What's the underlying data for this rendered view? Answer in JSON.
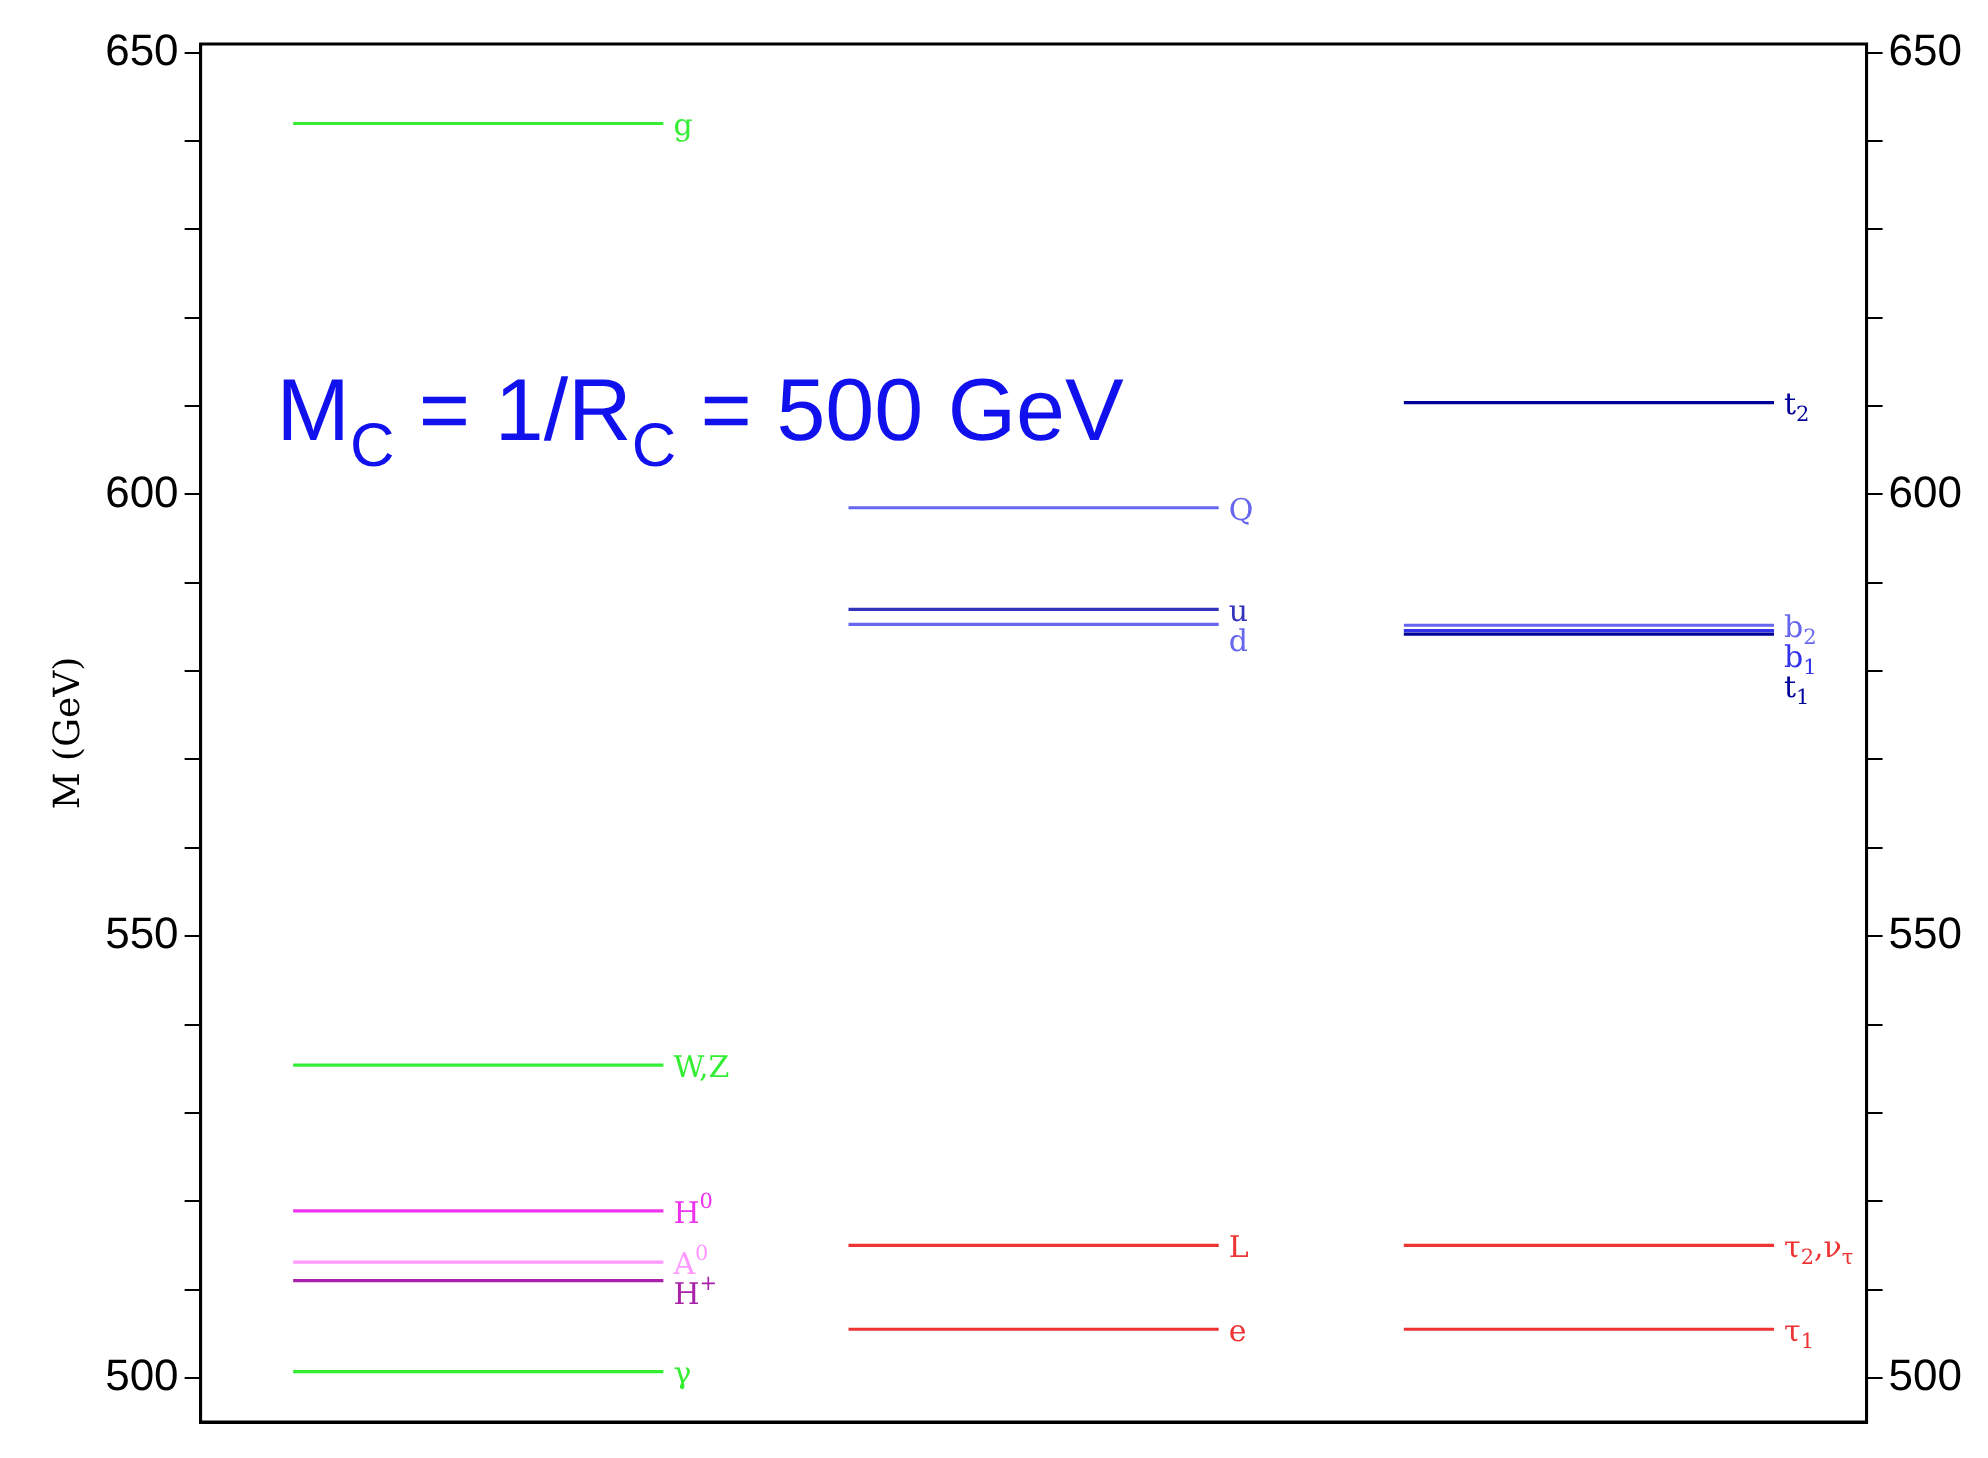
{
  "chart_data": {
    "type": "line",
    "title": "M$_{C}$ = 1/R$_{C}$ = 500 GeV",
    "ylabel": "M (GeV)",
    "categories": [
      null,
      null,
      null,
      null,
      null,
      null,
      null,
      null,
      null
    ],
    "series": [
      {
        "name": "g",
        "color": "#33ee33",
        "values": [
          642,
          642,
          642,
          null,
          null,
          null,
          null,
          null,
          null
        ]
      },
      {
        "name": "W,Z",
        "color": "#33ee33",
        "values": [
          535.4,
          535.4,
          535.4,
          null,
          null,
          null,
          null,
          null,
          null
        ]
      },
      {
        "name": "H$^{0}$",
        "color": "#ee33ee",
        "values": [
          518.9,
          518.9,
          518.9,
          null,
          null,
          null,
          null,
          null,
          null
        ]
      },
      {
        "name": "A$^{0}$",
        "color": "#ff99ff",
        "values": [
          513.1,
          513.1,
          513.1,
          null,
          null,
          null,
          null,
          null,
          null
        ]
      },
      {
        "name": "H$^{+}$",
        "color": "#aa22aa",
        "values": [
          511,
          511,
          511,
          null,
          null,
          null,
          null,
          null,
          null
        ]
      },
      {
        "name": "γ",
        "color": "#33ee33",
        "values": [
          500.7,
          500.7,
          500.7,
          null,
          null,
          null,
          null,
          null,
          null
        ]
      },
      {
        "name": "Q",
        "color": "#6666ee",
        "values": [
          null,
          null,
          null,
          598.5,
          598.5,
          598.5,
          null,
          null,
          null
        ]
      },
      {
        "name": "u",
        "color": "#3333bb",
        "values": [
          null,
          null,
          null,
          587,
          587,
          587,
          null,
          null,
          null
        ]
      },
      {
        "name": "d",
        "color": "#6666ee",
        "values": [
          null,
          null,
          null,
          585.3,
          585.3,
          585.3,
          null,
          null,
          null
        ]
      },
      {
        "name": "L",
        "color": "#ee3333",
        "values": [
          null,
          null,
          null,
          515,
          515,
          515,
          null,
          null,
          null
        ]
      },
      {
        "name": "e",
        "color": "#ee3333",
        "values": [
          null,
          null,
          null,
          505.5,
          505.5,
          505.5,
          null,
          null,
          null
        ]
      },
      {
        "name": "t$_{2}$",
        "color": "#000099",
        "values": [
          null,
          null,
          null,
          null,
          null,
          null,
          610.4,
          610.4,
          610.4
        ]
      },
      {
        "name": "b$_{2}$",
        "color": "#6666ee",
        "values": [
          null,
          null,
          null,
          null,
          null,
          null,
          585.2,
          585.2,
          585.2
        ]
      },
      {
        "name": "t$_{1}$",
        "color": "#000099",
        "values": [
          null,
          null,
          null,
          null,
          null,
          null,
          584.2,
          584.2,
          584.2
        ]
      },
      {
        "name": "b$_{1}$",
        "color": "#3333ee",
        "values": [
          null,
          null,
          null,
          null,
          null,
          null,
          584.6,
          584.6,
          584.6
        ]
      },
      {
        "name": "τ$_{2}$,ν$_{τ}$",
        "color": "#ee3333",
        "values": [
          null,
          null,
          null,
          null,
          null,
          null,
          515,
          515,
          515
        ]
      },
      {
        "name": "τ$_{1}$",
        "color": "#ee3333",
        "values": [
          null,
          null,
          null,
          null,
          null,
          null,
          505.5,
          505.5,
          505.5
        ]
      }
    ],
    "ylim": [
      495,
      651
    ],
    "yticks": [
      500,
      {
        "value": 510,
        "label": null
      },
      {
        "value": 520,
        "label": null
      },
      {
        "value": 530,
        "label": null
      },
      {
        "value": 540,
        "label": null
      },
      550,
      {
        "value": 560,
        "label": null
      },
      {
        "value": 570,
        "label": null
      },
      {
        "value": 580,
        "label": null
      },
      {
        "value": 590,
        "label": null
      },
      600,
      {
        "value": 610,
        "label": null
      },
      {
        "value": 620,
        "label": null
      },
      {
        "value": 630,
        "label": null
      },
      {
        "value": 640,
        "label": null
      },
      650
    ],
    "y2lim": [
      495,
      651
    ],
    "y2ticks": [
      500,
      {
        "value": 510,
        "label": null
      },
      {
        "value": 520,
        "label": null
      },
      {
        "value": 530,
        "label": null
      },
      {
        "value": 540,
        "label": null
      },
      550,
      {
        "value": 560,
        "label": null
      },
      {
        "value": 570,
        "label": null
      },
      {
        "value": 580,
        "label": null
      },
      {
        "value": 590,
        "label": null
      },
      600,
      {
        "value": 610,
        "label": null
      },
      {
        "value": 620,
        "label": null
      },
      {
        "value": 630,
        "label": null
      },
      {
        "value": 640,
        "label": null
      },
      650
    ],
    "tick_labels": "y",
    "grid": false,
    "legend": false
  }
}
